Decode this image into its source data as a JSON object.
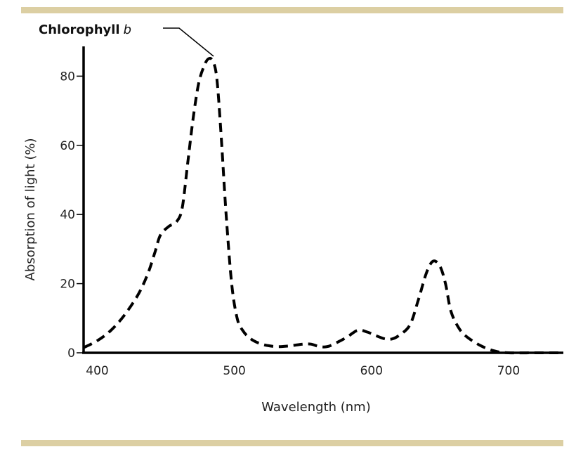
{
  "chart_data": {
    "type": "line",
    "title": "",
    "xlabel": "Wavelength (nm)",
    "ylabel": "Absorption of light (%)",
    "xlim": [
      390,
      740
    ],
    "ylim": [
      0,
      88
    ],
    "x_ticks": [
      400,
      500,
      600,
      700
    ],
    "y_ticks": [
      0,
      20,
      40,
      60,
      80
    ],
    "grid": false,
    "series": [
      {
        "name": "Chlorophyll b",
        "label_bold": "Chlorophyll",
        "label_italic": "b",
        "line_style": "dashed",
        "color": "#000000",
        "x": [
          390,
          400,
          410,
          420,
          430,
          437,
          442,
          446,
          452,
          458,
          462,
          466,
          470,
          474,
          478,
          481,
          484,
          487,
          490,
          494,
          498,
          502,
          506,
          512,
          520,
          530,
          540,
          550,
          556,
          562,
          568,
          575,
          582,
          590,
          597,
          603,
          610,
          615,
          620,
          628,
          634,
          640,
          645,
          650,
          654,
          658,
          664,
          670,
          680,
          690,
          700,
          720,
          740
        ],
        "y": [
          1.5,
          3.5,
          6.5,
          11,
          17,
          23,
          29,
          34,
          36.5,
          38,
          42,
          55,
          68,
          78,
          83,
          85,
          84.5,
          80,
          65,
          40,
          20,
          10,
          6.5,
          4,
          2.5,
          1.8,
          2,
          2.5,
          2.5,
          1.8,
          1.8,
          3,
          4.5,
          6.5,
          6,
          5,
          4,
          4,
          5,
          8,
          15,
          23,
          26.5,
          25,
          20,
          12,
          7,
          4.5,
          2,
          0.5,
          0,
          0,
          0
        ]
      }
    ]
  }
}
